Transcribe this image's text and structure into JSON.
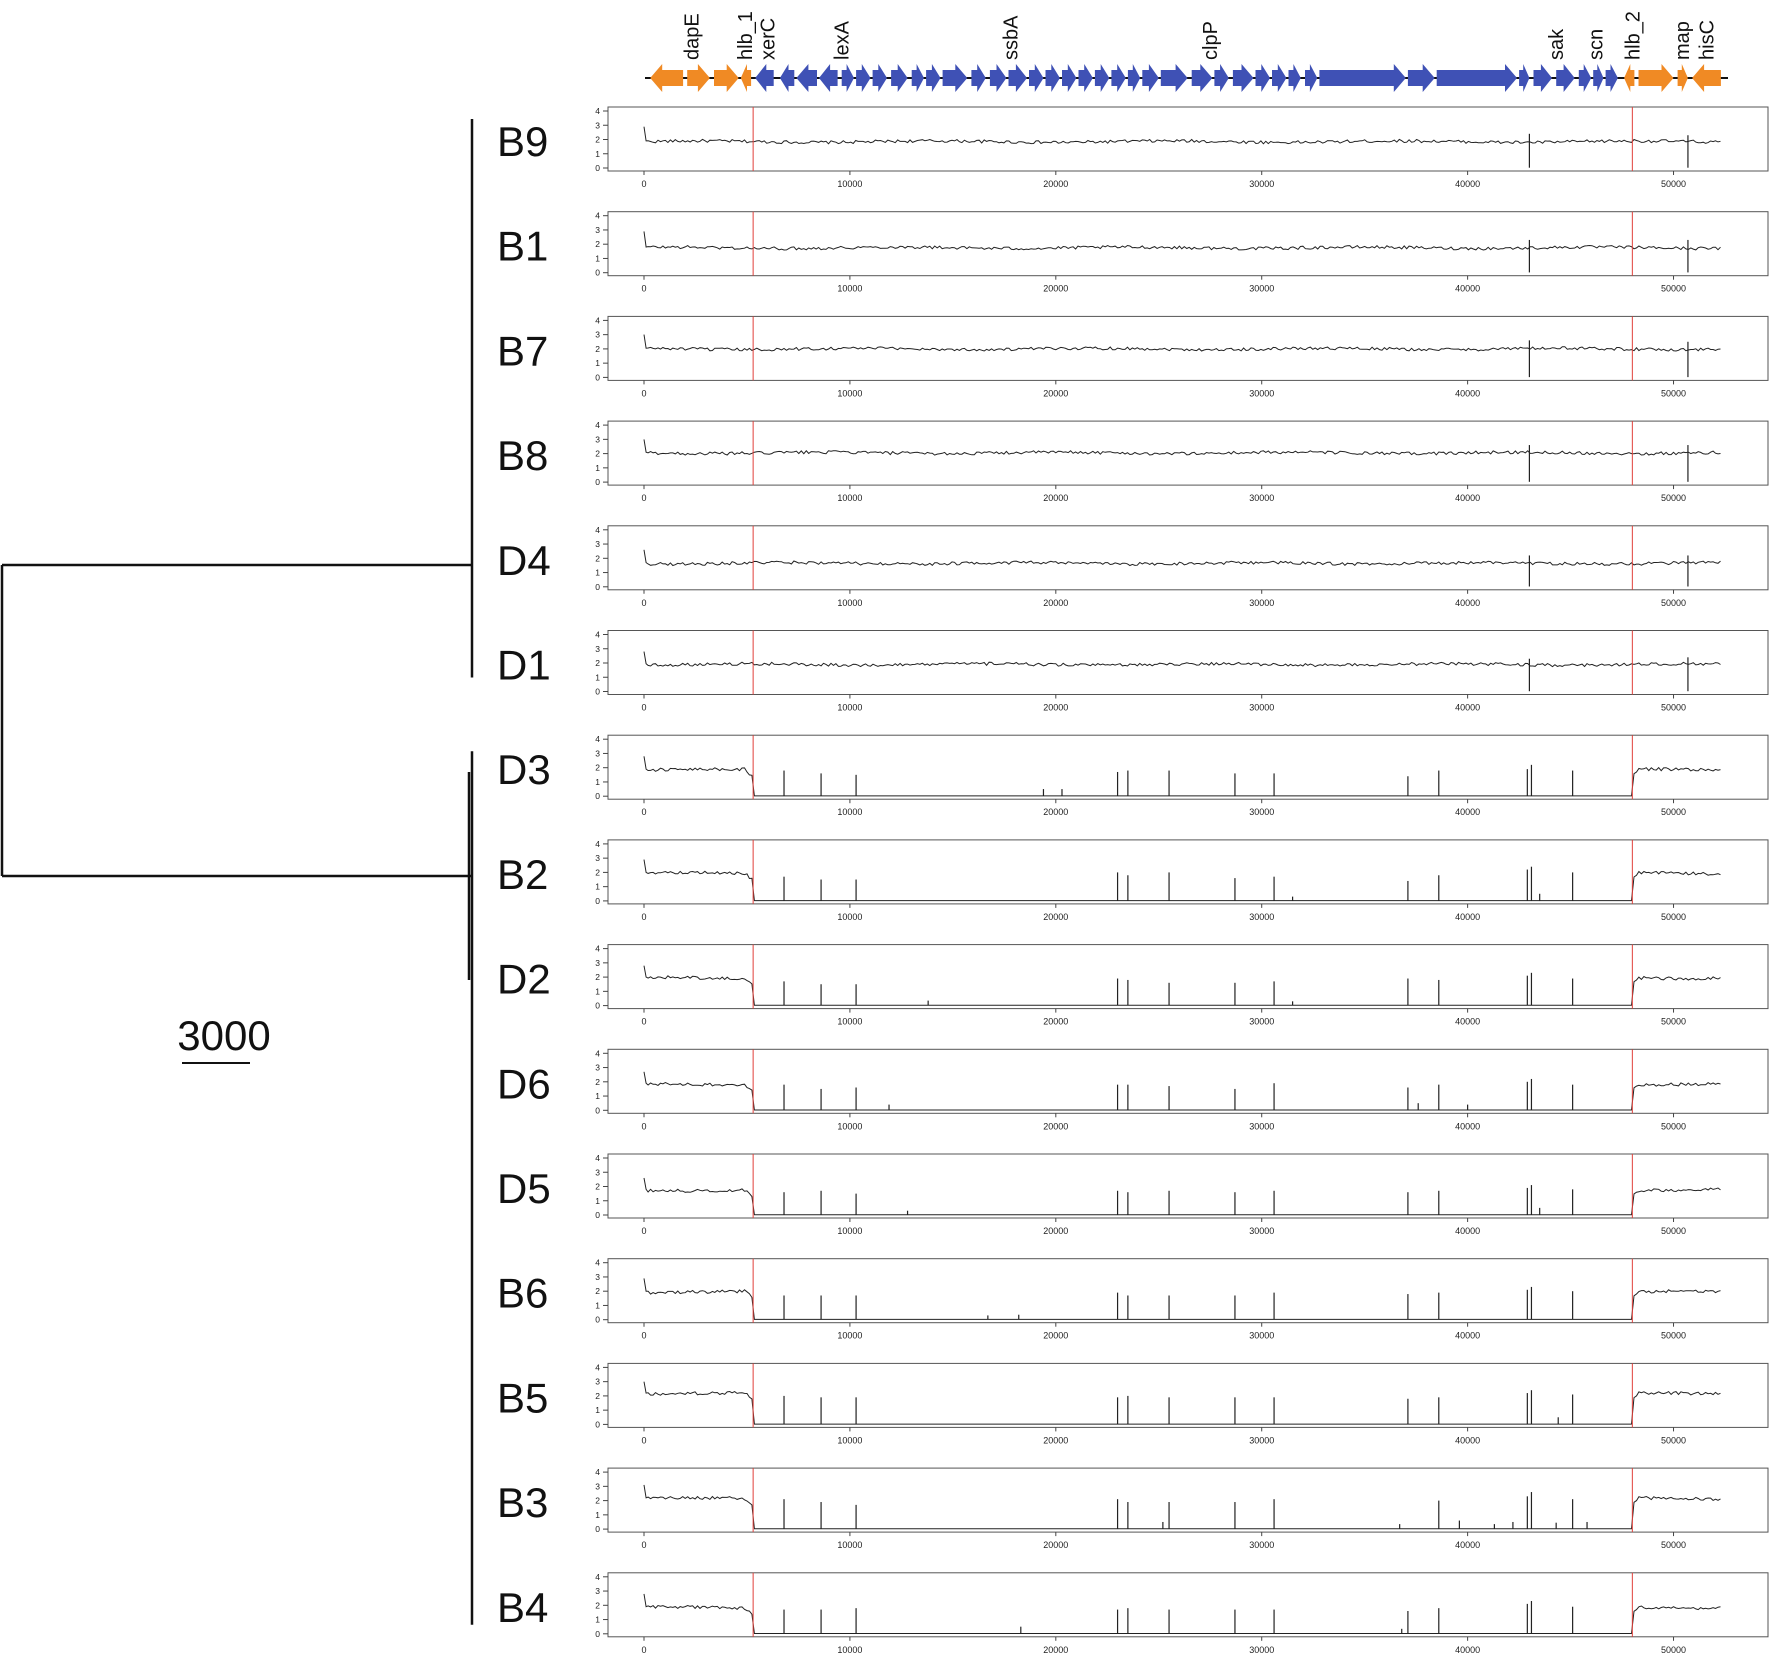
{
  "tree": {
    "scale_label": "3000",
    "clades": [
      {
        "name": "upper",
        "leaves": [
          "B9",
          "B1",
          "B7",
          "B8",
          "D4",
          "D1"
        ]
      },
      {
        "name": "lower",
        "leaves": [
          "D3",
          "B2",
          "D2",
          "D6",
          "D5",
          "B6",
          "B5",
          "B3",
          "B4"
        ]
      }
    ]
  },
  "genes": {
    "labels": [
      {
        "label": "dapE",
        "pos": 2300
      },
      {
        "label": "hlb_1",
        "pos": 4900
      },
      {
        "label": "xerC",
        "pos": 6000
      },
      {
        "label": "lexA",
        "pos": 9600
      },
      {
        "label": "ssbA",
        "pos": 17800
      },
      {
        "label": "clpP",
        "pos": 27500
      },
      {
        "label": "sak",
        "pos": 44300
      },
      {
        "label": "scn",
        "pos": 46200
      },
      {
        "label": "hlb_2",
        "pos": 48000
      },
      {
        "label": "map",
        "pos": 50400
      },
      {
        "label": "hisC",
        "pos": 51600
      }
    ],
    "colors": {
      "phage": "#3f51b5",
      "flank": "#f08a24"
    }
  },
  "chart_data": {
    "type": "line",
    "xlim": [
      0,
      52500
    ],
    "ylim": [
      0,
      4
    ],
    "x_ticks": [
      0,
      10000,
      20000,
      30000,
      40000,
      50000
    ],
    "x_tick_labels": [
      "0",
      "10000",
      "20000",
      "30000",
      "40000",
      "50000"
    ],
    "y_ticks": [
      0,
      1,
      2,
      3,
      4
    ],
    "y_tick_labels": [
      "0",
      "1",
      "2",
      "3",
      "4"
    ],
    "boundaries": [
      5300,
      48000
    ],
    "boundary_color": "#e0403a",
    "line_color": "#222222",
    "xlabel": "",
    "ylabel": "",
    "panels": [
      {
        "sample": "B9",
        "baseline": 1.85,
        "start_peak": 2.9,
        "phage_present": true,
        "spikes": [
          [
            43000,
            2.4
          ],
          [
            50700,
            2.3
          ]
        ]
      },
      {
        "sample": "B1",
        "baseline": 1.75,
        "start_peak": 2.9,
        "phage_present": true,
        "spikes": [
          [
            43000,
            2.3
          ],
          [
            50700,
            2.3
          ]
        ]
      },
      {
        "sample": "B7",
        "baseline": 2.0,
        "start_peak": 3.0,
        "phage_present": true,
        "spikes": [
          [
            43000,
            2.6
          ],
          [
            50700,
            2.5
          ]
        ]
      },
      {
        "sample": "B8",
        "baseline": 2.05,
        "start_peak": 3.0,
        "phage_present": true,
        "spikes": [
          [
            43000,
            2.6
          ],
          [
            50700,
            2.6
          ]
        ]
      },
      {
        "sample": "D4",
        "baseline": 1.65,
        "start_peak": 2.6,
        "phage_present": true,
        "spikes": [
          [
            43000,
            2.2
          ],
          [
            50700,
            2.2
          ]
        ]
      },
      {
        "sample": "D1",
        "baseline": 1.9,
        "start_peak": 2.8,
        "phage_present": true,
        "spikes": [
          [
            43000,
            2.3
          ],
          [
            50700,
            2.4
          ]
        ]
      },
      {
        "sample": "D3",
        "baseline": 1.85,
        "start_peak": 2.8,
        "phage_present": false,
        "spikes": [
          [
            6800,
            1.8
          ],
          [
            8600,
            1.6
          ],
          [
            10300,
            1.5
          ],
          [
            19400,
            0.5
          ],
          [
            20300,
            0.5
          ],
          [
            23000,
            1.7
          ],
          [
            23500,
            1.8
          ],
          [
            25500,
            1.8
          ],
          [
            28700,
            1.6
          ],
          [
            30600,
            1.6
          ],
          [
            37100,
            1.4
          ],
          [
            38600,
            1.8
          ],
          [
            42900,
            1.9
          ],
          [
            43100,
            2.2
          ],
          [
            45100,
            1.8
          ]
        ]
      },
      {
        "sample": "B2",
        "baseline": 1.95,
        "start_peak": 2.9,
        "phage_present": false,
        "spikes": [
          [
            6800,
            1.7
          ],
          [
            8600,
            1.5
          ],
          [
            10300,
            1.5
          ],
          [
            23000,
            2.0
          ],
          [
            23500,
            1.8
          ],
          [
            25500,
            2.0
          ],
          [
            28700,
            1.6
          ],
          [
            30600,
            1.7
          ],
          [
            31500,
            0.3
          ],
          [
            37100,
            1.4
          ],
          [
            38600,
            1.8
          ],
          [
            42900,
            2.2
          ],
          [
            43100,
            2.4
          ],
          [
            43500,
            0.5
          ],
          [
            45100,
            2.0
          ]
        ]
      },
      {
        "sample": "D2",
        "baseline": 1.95,
        "start_peak": 2.8,
        "phage_present": false,
        "spikes": [
          [
            6800,
            1.7
          ],
          [
            8600,
            1.5
          ],
          [
            10300,
            1.5
          ],
          [
            13800,
            0.35
          ],
          [
            23000,
            1.9
          ],
          [
            23500,
            1.8
          ],
          [
            25500,
            1.6
          ],
          [
            28700,
            1.6
          ],
          [
            30600,
            1.7
          ],
          [
            31500,
            0.3
          ],
          [
            37100,
            1.9
          ],
          [
            38600,
            1.8
          ],
          [
            42900,
            2.1
          ],
          [
            43100,
            2.3
          ],
          [
            45100,
            1.9
          ]
        ]
      },
      {
        "sample": "D6",
        "baseline": 1.85,
        "start_peak": 2.7,
        "phage_present": false,
        "spikes": [
          [
            6800,
            1.8
          ],
          [
            8600,
            1.5
          ],
          [
            10300,
            1.6
          ],
          [
            11900,
            0.4
          ],
          [
            23000,
            1.8
          ],
          [
            23500,
            1.8
          ],
          [
            25500,
            1.7
          ],
          [
            28700,
            1.5
          ],
          [
            30600,
            1.9
          ],
          [
            37100,
            1.6
          ],
          [
            37600,
            0.5
          ],
          [
            38600,
            1.8
          ],
          [
            40000,
            0.4
          ],
          [
            42900,
            2.0
          ],
          [
            43100,
            2.2
          ],
          [
            45100,
            1.8
          ]
        ]
      },
      {
        "sample": "D5",
        "baseline": 1.75,
        "start_peak": 2.6,
        "phage_present": false,
        "spikes": [
          [
            6800,
            1.6
          ],
          [
            8600,
            1.7
          ],
          [
            10300,
            1.5
          ],
          [
            12800,
            0.3
          ],
          [
            23000,
            1.7
          ],
          [
            23500,
            1.6
          ],
          [
            25500,
            1.7
          ],
          [
            28700,
            1.6
          ],
          [
            30600,
            1.7
          ],
          [
            37100,
            1.6
          ],
          [
            38600,
            1.7
          ],
          [
            42900,
            1.9
          ],
          [
            43100,
            2.1
          ],
          [
            43500,
            0.5
          ],
          [
            45100,
            1.8
          ]
        ]
      },
      {
        "sample": "B6",
        "baseline": 1.95,
        "start_peak": 2.9,
        "phage_present": false,
        "spikes": [
          [
            6800,
            1.7
          ],
          [
            8600,
            1.7
          ],
          [
            10300,
            1.7
          ],
          [
            16700,
            0.3
          ],
          [
            18200,
            0.35
          ],
          [
            23000,
            1.9
          ],
          [
            23500,
            1.7
          ],
          [
            25500,
            1.7
          ],
          [
            28700,
            1.7
          ],
          [
            30600,
            1.9
          ],
          [
            37100,
            1.8
          ],
          [
            38600,
            1.9
          ],
          [
            42900,
            2.1
          ],
          [
            43100,
            2.3
          ],
          [
            45100,
            2.0
          ]
        ]
      },
      {
        "sample": "B5",
        "baseline": 2.15,
        "start_peak": 3.0,
        "phage_present": false,
        "spikes": [
          [
            6800,
            2.0
          ],
          [
            8600,
            1.9
          ],
          [
            10300,
            1.9
          ],
          [
            23000,
            1.9
          ],
          [
            23500,
            2.0
          ],
          [
            25500,
            1.9
          ],
          [
            28700,
            1.9
          ],
          [
            30600,
            1.9
          ],
          [
            37100,
            1.8
          ],
          [
            38600,
            1.9
          ],
          [
            42900,
            2.2
          ],
          [
            43100,
            2.4
          ],
          [
            44400,
            0.5
          ],
          [
            45100,
            2.1
          ]
        ]
      },
      {
        "sample": "B3",
        "baseline": 2.15,
        "start_peak": 3.1,
        "phage_present": false,
        "spikes": [
          [
            6800,
            2.1
          ],
          [
            8600,
            1.9
          ],
          [
            10300,
            1.7
          ],
          [
            23000,
            2.1
          ],
          [
            23500,
            1.9
          ],
          [
            25200,
            0.5
          ],
          [
            25500,
            1.9
          ],
          [
            28700,
            1.9
          ],
          [
            30600,
            2.1
          ],
          [
            36700,
            0.35
          ],
          [
            38600,
            2.0
          ],
          [
            39600,
            0.6
          ],
          [
            41300,
            0.35
          ],
          [
            42200,
            0.5
          ],
          [
            42900,
            2.3
          ],
          [
            43100,
            2.6
          ],
          [
            44300,
            0.45
          ],
          [
            45100,
            2.1
          ],
          [
            45800,
            0.5
          ]
        ]
      },
      {
        "sample": "B4",
        "baseline": 1.85,
        "start_peak": 2.8,
        "phage_present": false,
        "spikes": [
          [
            6800,
            1.7
          ],
          [
            8600,
            1.7
          ],
          [
            10300,
            1.8
          ],
          [
            18300,
            0.5
          ],
          [
            23000,
            1.7
          ],
          [
            23500,
            1.8
          ],
          [
            25500,
            1.7
          ],
          [
            28700,
            1.7
          ],
          [
            30600,
            1.7
          ],
          [
            36800,
            0.35
          ],
          [
            37100,
            1.6
          ],
          [
            38600,
            1.8
          ],
          [
            42900,
            2.1
          ],
          [
            43100,
            2.3
          ],
          [
            45100,
            1.9
          ]
        ]
      }
    ]
  }
}
